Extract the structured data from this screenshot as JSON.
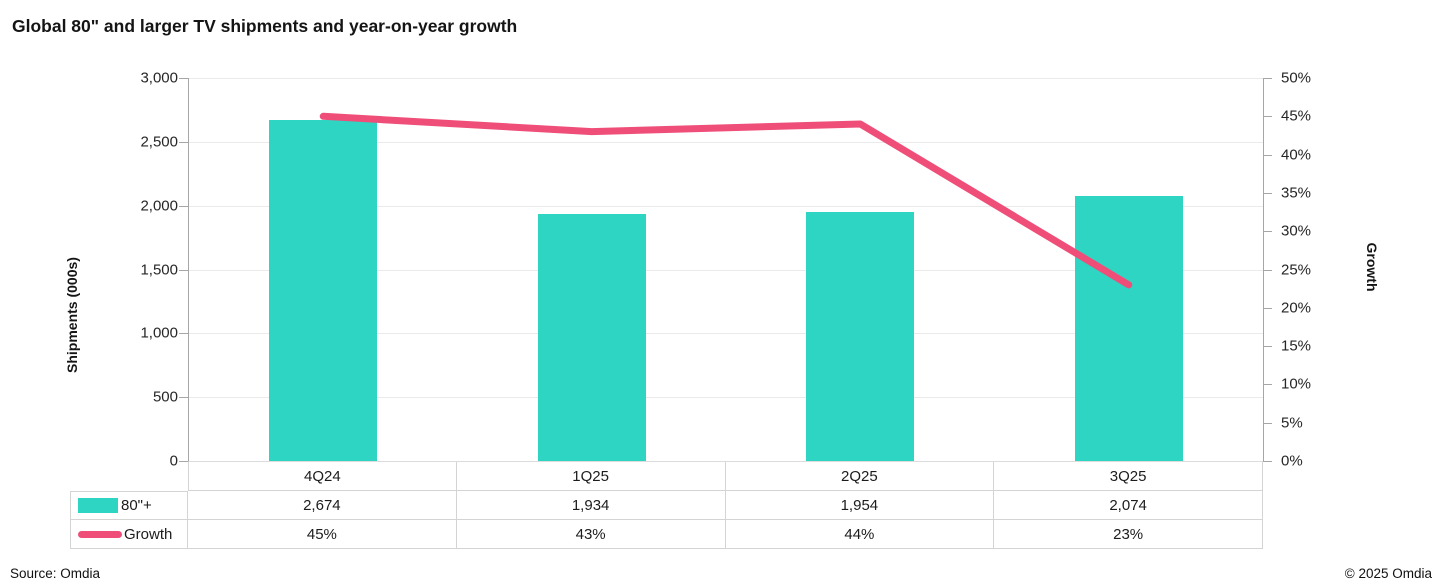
{
  "title": "Global 80\" and larger TV shipments and year-on-year growth",
  "footer": {
    "source": "Source: Omdia",
    "copyright": "© 2025 Omdia"
  },
  "colors": {
    "bar": "#2FD5C3",
    "line": "#EF4E78",
    "grid": "#EAEAEA",
    "axis_line": "#A6A6A6",
    "table_border": "#D4D4D4",
    "text": "#1A1A1A"
  },
  "chart_data": {
    "type": "combo-bar-line",
    "categories": [
      "4Q24",
      "1Q25",
      "2Q25",
      "3Q25"
    ],
    "series": [
      {
        "name": "80\"+",
        "type": "bar",
        "axis": "left",
        "values": [
          2674,
          1934,
          1954,
          2074
        ]
      },
      {
        "name": "Growth",
        "type": "line",
        "axis": "right",
        "values_percent": [
          45,
          43,
          44,
          23
        ]
      }
    ],
    "left_axis": {
      "label": "Shipments (000s)",
      "min": 0,
      "max": 3000,
      "step": 500,
      "tick_labels": [
        "0",
        "500",
        "1,000",
        "1,500",
        "2,000",
        "2,500",
        "3,000"
      ]
    },
    "right_axis": {
      "label": "Growth",
      "min": 0,
      "max": 50,
      "step": 5,
      "tick_labels": [
        "0%",
        "5%",
        "10%",
        "15%",
        "20%",
        "25%",
        "30%",
        "35%",
        "40%",
        "45%",
        "50%"
      ]
    },
    "grid": true,
    "legend_position": "table-left-column"
  },
  "table": {
    "rows": [
      {
        "legend": "80\"+",
        "swatch": "bar-swatch-icon",
        "values": [
          "2,674",
          "1,934",
          "1,954",
          "2,074"
        ]
      },
      {
        "legend": "Growth",
        "swatch": "line-swatch-icon",
        "values": [
          "45%",
          "43%",
          "44%",
          "23%"
        ]
      }
    ]
  }
}
